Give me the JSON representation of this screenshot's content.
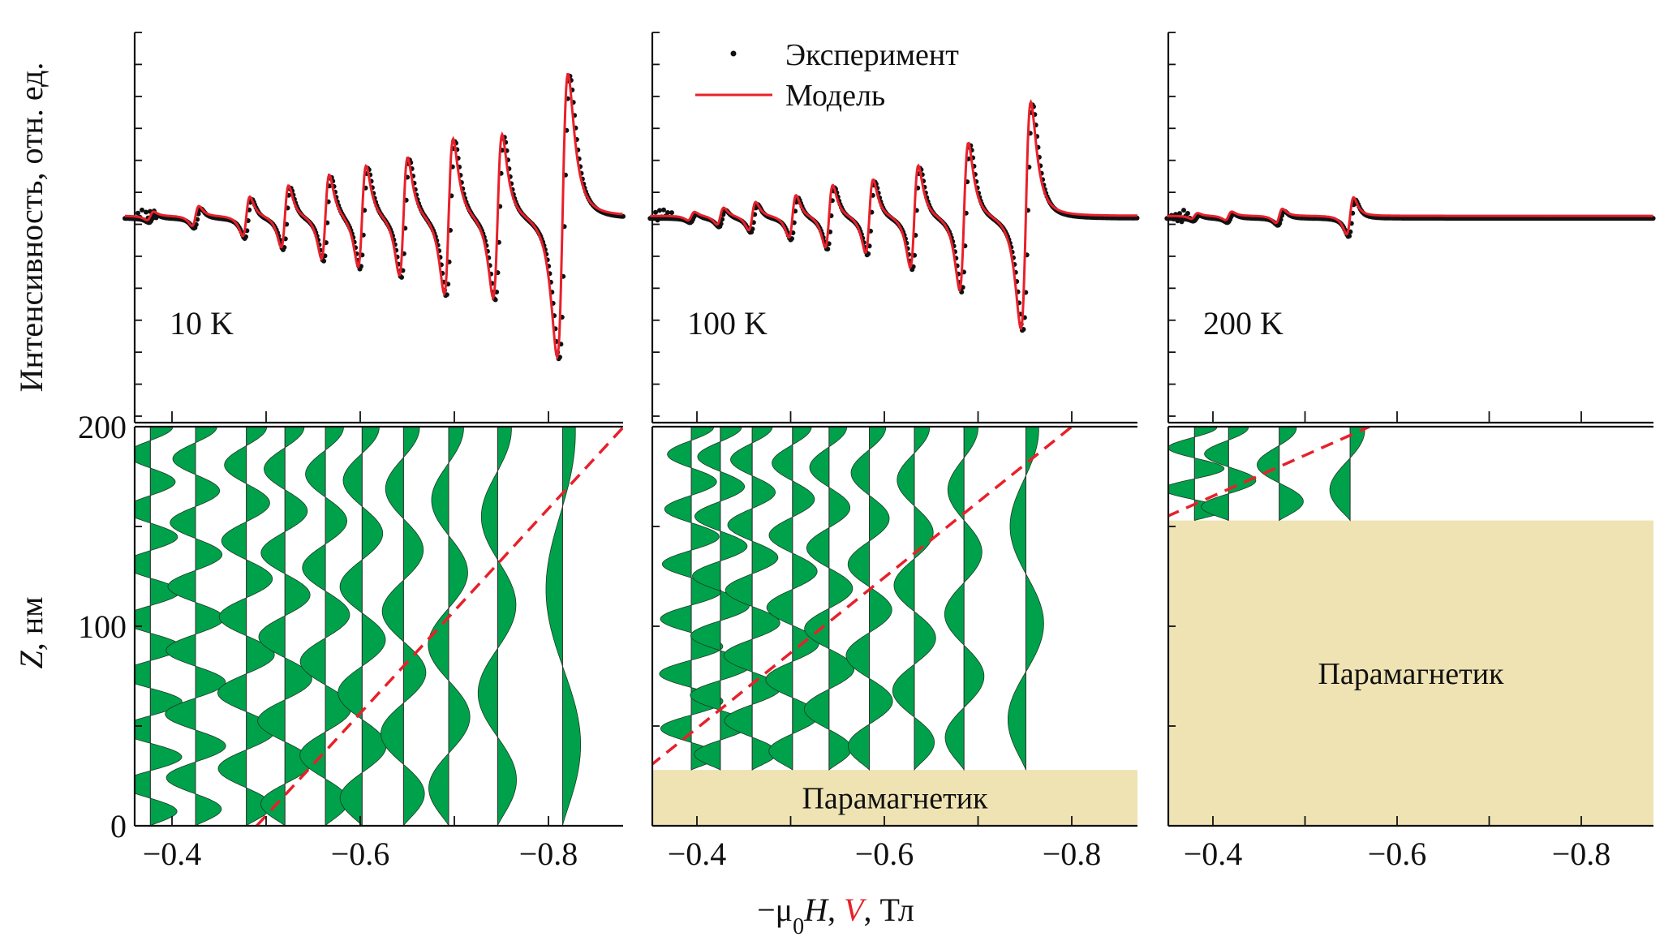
{
  "figure": {
    "y_label_top": "Интенсивность, отн. ед.",
    "y_label_bottom_var": "Z",
    "y_label_bottom_unit": ", нм",
    "x_label_prefix": "−μ",
    "x_label_sub": "0",
    "x_label_H": "H",
    "x_label_sep1": ", ",
    "x_label_V": "V",
    "x_label_unit": ", Тл",
    "legend": {
      "experiment": "Эксперимент",
      "model": "Модель"
    },
    "paramagnet_label": "Парамагнетик",
    "colors": {
      "experiment": "#111111",
      "model": "#e8202a",
      "mode_fill": "#00a14b",
      "potential": "#e8202a",
      "paramagnet": "#efe3b3"
    }
  },
  "chart_data": [
    {
      "type": "line",
      "panel": "spectrum",
      "temperature_label": "10 K",
      "xlabel": "−μ0H, Тл",
      "ylabel": "Интенсивность, отн. ед.",
      "xlim": [
        -0.35,
        -0.89
      ],
      "ylim": [
        -1.0,
        1.0
      ],
      "y_ticks_count": 13,
      "series": [
        {
          "name": "Эксперимент",
          "style": "dots"
        },
        {
          "name": "Модель",
          "style": "line"
        }
      ],
      "resonances": [
        {
          "x": -0.377,
          "amp": 0.03
        },
        {
          "x": -0.425,
          "amp": 0.07
        },
        {
          "x": -0.479,
          "amp": 0.14
        },
        {
          "x": -0.52,
          "amp": 0.22
        },
        {
          "x": -0.563,
          "amp": 0.3
        },
        {
          "x": -0.602,
          "amp": 0.36
        },
        {
          "x": -0.646,
          "amp": 0.42
        },
        {
          "x": -0.694,
          "amp": 0.55
        },
        {
          "x": -0.746,
          "amp": 0.58
        },
        {
          "x": -0.815,
          "amp": 1.0
        }
      ]
    },
    {
      "type": "line",
      "panel": "spectrum",
      "temperature_label": "100 K",
      "xlim": [
        -0.35,
        -0.89
      ],
      "ylim": [
        -1.0,
        1.0
      ],
      "y_ticks_count": 13,
      "resonances": [
        {
          "x": -0.394,
          "amp": 0.03
        },
        {
          "x": -0.425,
          "amp": 0.06
        },
        {
          "x": -0.459,
          "amp": 0.1
        },
        {
          "x": -0.502,
          "amp": 0.15
        },
        {
          "x": -0.541,
          "amp": 0.22
        },
        {
          "x": -0.584,
          "amp": 0.26
        },
        {
          "x": -0.632,
          "amp": 0.36
        },
        {
          "x": -0.685,
          "amp": 0.52
        },
        {
          "x": -0.751,
          "amp": 0.8
        }
      ]
    },
    {
      "type": "line",
      "panel": "spectrum",
      "temperature_label": "200 K",
      "xlim": [
        -0.35,
        -0.89
      ],
      "ylim": [
        -1.0,
        1.0
      ],
      "y_ticks_count": 13,
      "resonances": [
        {
          "x": -0.38,
          "amp": 0.02
        },
        {
          "x": -0.417,
          "amp": 0.03
        },
        {
          "x": -0.472,
          "amp": 0.05
        },
        {
          "x": -0.549,
          "amp": 0.13
        }
      ]
    },
    {
      "type": "area",
      "panel": "mode-profiles",
      "xlabel": "−μ0H, V, Тл",
      "ylabel": "Z, нм",
      "xlim": [
        -0.35,
        -0.89
      ],
      "ylim": [
        0,
        200
      ],
      "x_ticks": [
        -0.4,
        -0.5,
        -0.6,
        -0.7,
        -0.8
      ],
      "x_tick_labels": [
        "−0.4",
        "",
        "−0.6",
        "",
        "−0.8"
      ],
      "y_ticks": [
        0,
        50,
        100,
        150,
        200
      ],
      "y_tick_labels": [
        "0",
        "",
        "100",
        "",
        "200"
      ],
      "paramagnet_top_nm": 0,
      "potential_line": [
        [
          -0.49,
          0
        ],
        [
          -0.88,
          200
        ]
      ],
      "modes": [
        {
          "x": -0.377,
          "n": 14,
          "bottom_nm": 0
        },
        {
          "x": -0.425,
          "n": 12,
          "bottom_nm": 0
        },
        {
          "x": -0.479,
          "n": 10,
          "bottom_nm": 0
        },
        {
          "x": -0.52,
          "n": 9,
          "bottom_nm": 0
        },
        {
          "x": -0.563,
          "n": 8,
          "bottom_nm": 0
        },
        {
          "x": -0.602,
          "n": 7,
          "bottom_nm": 0
        },
        {
          "x": -0.646,
          "n": 6,
          "bottom_nm": 0
        },
        {
          "x": -0.694,
          "n": 5,
          "bottom_nm": 0
        },
        {
          "x": -0.746,
          "n": 4,
          "bottom_nm": 0
        },
        {
          "x": -0.815,
          "n": 2,
          "bottom_nm": 0
        }
      ]
    },
    {
      "type": "area",
      "panel": "mode-profiles",
      "xlim": [
        -0.35,
        -0.89
      ],
      "ylim": [
        0,
        200
      ],
      "x_ticks": [
        -0.4,
        -0.5,
        -0.6,
        -0.7,
        -0.8
      ],
      "x_tick_labels": [
        "−0.4",
        "",
        "−0.6",
        "",
        "−0.8"
      ],
      "paramagnet_top_nm": 28,
      "potential_line": [
        [
          -0.35,
          30
        ],
        [
          -0.8,
          200
        ]
      ],
      "modes": [
        {
          "x": -0.394,
          "n": 12,
          "bottom_nm": 28
        },
        {
          "x": -0.425,
          "n": 11,
          "bottom_nm": 28
        },
        {
          "x": -0.459,
          "n": 10,
          "bottom_nm": 28
        },
        {
          "x": -0.502,
          "n": 9,
          "bottom_nm": 28
        },
        {
          "x": -0.541,
          "n": 8,
          "bottom_nm": 28
        },
        {
          "x": -0.584,
          "n": 7,
          "bottom_nm": 28
        },
        {
          "x": -0.632,
          "n": 6,
          "bottom_nm": 28
        },
        {
          "x": -0.685,
          "n": 5,
          "bottom_nm": 28
        },
        {
          "x": -0.751,
          "n": 3,
          "bottom_nm": 28
        }
      ]
    },
    {
      "type": "area",
      "panel": "mode-profiles",
      "xlim": [
        -0.35,
        -0.89
      ],
      "ylim": [
        0,
        200
      ],
      "x_ticks": [
        -0.4,
        -0.5,
        -0.6,
        -0.7,
        -0.8
      ],
      "x_tick_labels": [
        "−0.4",
        "",
        "−0.6",
        "",
        "−0.8"
      ],
      "paramagnet_top_nm": 153,
      "potential_line": [
        [
          -0.35,
          155
        ],
        [
          -0.57,
          200
        ]
      ],
      "modes": [
        {
          "x": -0.38,
          "n": 4,
          "bottom_nm": 153
        },
        {
          "x": -0.417,
          "n": 3,
          "bottom_nm": 153
        },
        {
          "x": -0.472,
          "n": 2,
          "bottom_nm": 153
        },
        {
          "x": -0.549,
          "n": 1,
          "bottom_nm": 153
        }
      ]
    }
  ]
}
